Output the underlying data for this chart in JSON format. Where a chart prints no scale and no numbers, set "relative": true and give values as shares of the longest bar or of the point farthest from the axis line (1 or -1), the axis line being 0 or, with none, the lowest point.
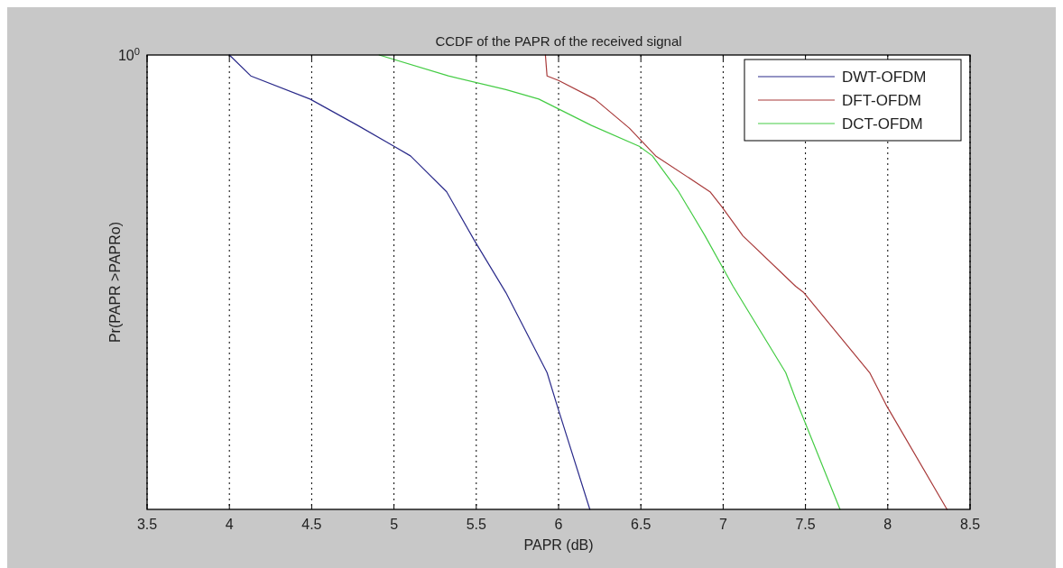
{
  "chart_data": {
    "type": "line",
    "title": "CCDF of the PAPR of the received signal",
    "xlabel": "PAPR (dB)",
    "ylabel": "Pr(PAPR >PAPRo)",
    "relative": true,
    "xlim": [
      3.5,
      8.5
    ],
    "xticks": [
      3.5,
      4,
      4.5,
      5,
      5.5,
      6,
      6.5,
      7,
      7.5,
      8,
      8.5
    ],
    "annotations": [
      "10$^{0}$"
    ],
    "grid": "x",
    "legend": "top right",
    "line_style": "solid",
    "marker": "none",
    "series": [
      {
        "name": "DWT-OFDM",
        "color": "#2a2a8a",
        "x": [
          4.0,
          4.13,
          4.49,
          4.78,
          5.0,
          5.1,
          5.32,
          5.49,
          5.68,
          5.93,
          5.99,
          6.19
        ],
        "values": [
          1,
          0.954,
          0.903,
          0.845,
          0.799,
          0.778,
          0.699,
          0.591,
          0.477,
          0.301,
          0.23,
          0
        ]
      },
      {
        "name": "DFT-OFDM",
        "color": "#a83a3a",
        "x": [
          5.92,
          5.93,
          6.0,
          6.22,
          6.43,
          6.59,
          6.92,
          6.99,
          7.12,
          7.44,
          7.49,
          7.89,
          7.99,
          8.36
        ],
        "values": [
          1,
          0.954,
          0.944,
          0.903,
          0.839,
          0.778,
          0.699,
          0.667,
          0.602,
          0.491,
          0.477,
          0.301,
          0.23,
          0
        ]
      },
      {
        "name": "DCT-OFDM",
        "color": "#44cc44",
        "x": [
          4.91,
          5.33,
          5.68,
          5.88,
          6.2,
          6.49,
          6.57,
          6.73,
          6.89,
          7.06,
          7.38,
          7.44,
          7.71
        ],
        "values": [
          1,
          0.954,
          0.924,
          0.903,
          0.845,
          0.799,
          0.778,
          0.699,
          0.602,
          0.491,
          0.301,
          0.243,
          0
        ]
      }
    ]
  }
}
